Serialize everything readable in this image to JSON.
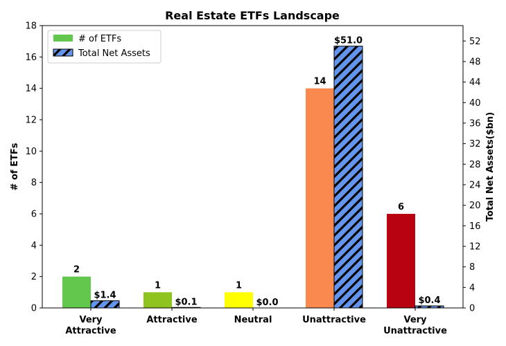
{
  "chart_data": {
    "type": "bar",
    "title": "Real Estate ETFs Landscape",
    "categories": [
      [
        "Very",
        "Attractive"
      ],
      [
        "Attractive"
      ],
      [
        "Neutral"
      ],
      [
        "Unattractive"
      ],
      [
        "Very",
        "Unattractive"
      ]
    ],
    "ylabel_left": "# of ETFs",
    "ylabel_right": "Total Net Assets($bn)",
    "ylim_left": [
      0,
      18
    ],
    "yticks_left": [
      0,
      2,
      4,
      6,
      8,
      10,
      12,
      14,
      16,
      18
    ],
    "ylim_right": [
      0,
      55
    ],
    "yticks_right": [
      0,
      4,
      8,
      12,
      16,
      20,
      24,
      28,
      32,
      36,
      40,
      44,
      48,
      52
    ],
    "legend_position": "top-left",
    "grid": false,
    "series": [
      {
        "name": "# of ETFs",
        "axis": "left",
        "values": [
          2,
          1,
          1,
          14,
          6
        ],
        "labels": [
          "2",
          "1",
          "1",
          "14",
          "6"
        ],
        "colors": [
          "#63c74d",
          "#8fc31f",
          "#ffff00",
          "#f9894f",
          "#b80211"
        ],
        "legend_color": "#63c74d"
      },
      {
        "name": "Total Net Assets",
        "axis": "right",
        "values": [
          1.4,
          0.1,
          0.0,
          51.0,
          0.4
        ],
        "labels": [
          "$1.4",
          "$0.1",
          "$0.0",
          "$51.0",
          "$0.4"
        ],
        "color": "#6495ed",
        "hatch": "diagonal"
      }
    ]
  }
}
